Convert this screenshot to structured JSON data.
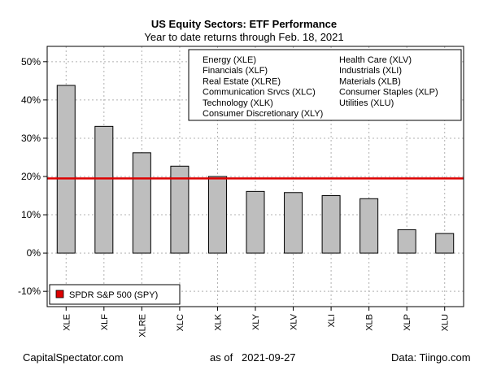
{
  "chart_data": {
    "type": "bar",
    "title": "US Equity Sectors: ETF Performance",
    "subtitle": "Year to date returns through Feb. 18, 2021",
    "categories": [
      "XLE",
      "XLF",
      "XLRE",
      "XLC",
      "XLK",
      "XLY",
      "XLV",
      "XLI",
      "XLB",
      "XLP",
      "XLU"
    ],
    "values": [
      43.8,
      33.1,
      26.2,
      22.7,
      20.0,
      16.1,
      15.8,
      15.0,
      14.2,
      6.1,
      5.1
    ],
    "ylim": [
      -14,
      54
    ],
    "yticks": [
      -10,
      0,
      10,
      20,
      30,
      40,
      50
    ],
    "ytick_labels": [
      "-10%",
      "0%",
      "10%",
      "20%",
      "30%",
      "40%",
      "50%"
    ],
    "grid": true,
    "reference_line": {
      "name": "SPDR S&P 500 (SPY)",
      "value": 19.5,
      "color": "#dd0000"
    },
    "bar_color": "#bebebe",
    "legend_sectors": {
      "placement": "top-right",
      "items": [
        "Energy (XLE)",
        "Financials (XLF)",
        "Real Estate (XLRE)",
        "Communication Srvcs (XLC)",
        "Technology (XLK)",
        "Consumer Discretionary (XLY)",
        "Health Care (XLV)",
        "Industrials (XLI)",
        "Materials (XLB)",
        "Consumer Staples (XLP)",
        "Utilities (XLU)"
      ]
    },
    "legend_benchmark": {
      "placement": "bottom-left",
      "label": "SPDR S&P 500 (SPY)"
    }
  },
  "footer": {
    "left": "CapitalSpectator.com",
    "center_prefix": "as of",
    "center_date": "2021-09-27",
    "right": "Data: Tiingo.com"
  }
}
